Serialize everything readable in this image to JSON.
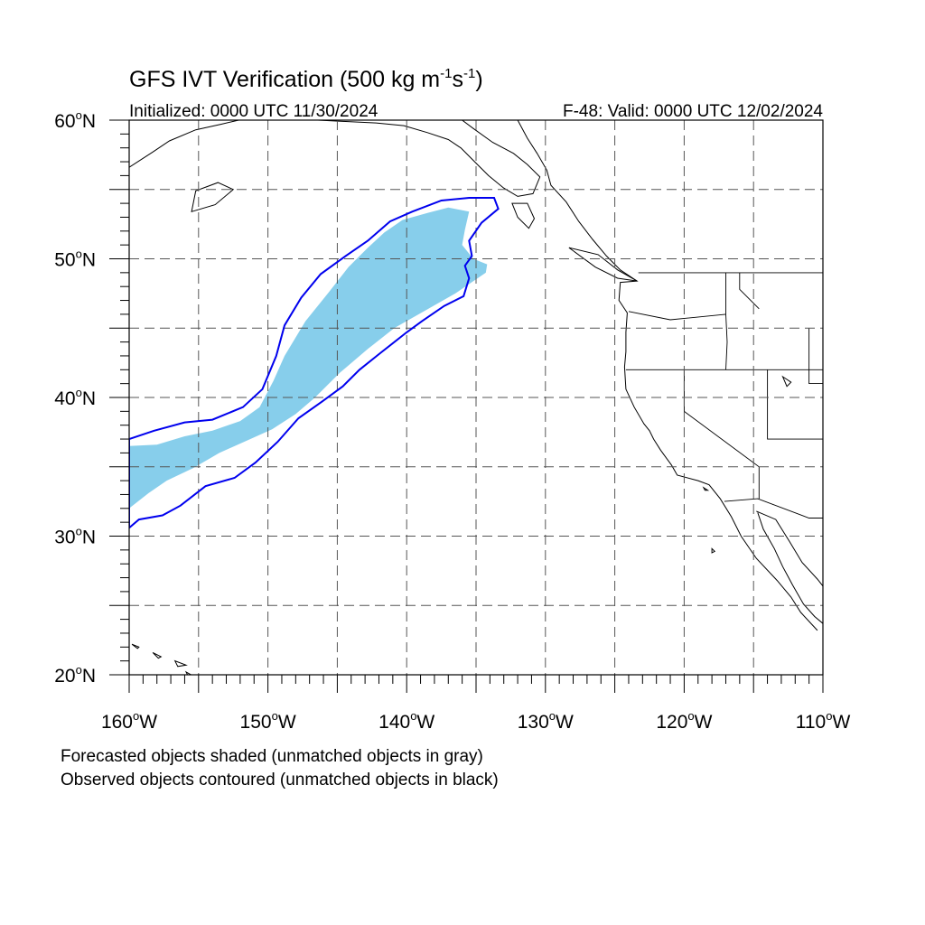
{
  "title": {
    "prefix": "GFS IVT Verification (500 kg m",
    "exp1": "-1",
    "mid": "s",
    "exp2": "-1",
    "suffix": ")"
  },
  "subtitle_left": "Initialized: 0000 UTC 11/30/2024",
  "subtitle_right": "F-48: Valid: 0000 UTC 12/02/2024",
  "degree_symbol": "o",
  "lat_labels": [
    {
      "value": 60,
      "num": "60",
      "hem": "N"
    },
    {
      "value": 50,
      "num": "50",
      "hem": "N"
    },
    {
      "value": 40,
      "num": "40",
      "hem": "N"
    },
    {
      "value": 30,
      "num": "30",
      "hem": "N"
    },
    {
      "value": 20,
      "num": "20",
      "hem": "N"
    }
  ],
  "lon_labels": [
    {
      "value": -160,
      "num": "160",
      "hem": "W"
    },
    {
      "value": -150,
      "num": "150",
      "hem": "W"
    },
    {
      "value": -140,
      "num": "140",
      "hem": "W"
    },
    {
      "value": -130,
      "num": "130",
      "hem": "W"
    },
    {
      "value": -120,
      "num": "120",
      "hem": "W"
    },
    {
      "value": -110,
      "num": "110",
      "hem": "W"
    }
  ],
  "map": {
    "lon_range": [
      -160,
      -110
    ],
    "lat_range": [
      20,
      60
    ],
    "grid_interval_deg": 5,
    "forecast_fill_color": "#87ceeb",
    "observed_contour_color": "#0000ee",
    "coastline_color": "#000000"
  },
  "forecast_object": [
    [
      -160,
      36.5
    ],
    [
      -158,
      36.6
    ],
    [
      -156,
      37.2
    ],
    [
      -154,
      37.6
    ],
    [
      -152,
      38.3
    ],
    [
      -150.6,
      39.3
    ],
    [
      -149.6,
      41.2
    ],
    [
      -148.8,
      43.0
    ],
    [
      -147.3,
      45.5
    ],
    [
      -145.6,
      47.6
    ],
    [
      -144.2,
      49.4
    ],
    [
      -142.8,
      50.8
    ],
    [
      -141.6,
      51.9
    ],
    [
      -140.3,
      52.8
    ],
    [
      -138.5,
      53.3
    ],
    [
      -137,
      53.7
    ],
    [
      -135.5,
      53.4
    ],
    [
      -135.8,
      52.1
    ],
    [
      -136,
      51.0
    ],
    [
      -135.2,
      50.0
    ],
    [
      -134.2,
      49.6
    ],
    [
      -134.3,
      49.0
    ],
    [
      -136.5,
      47.5
    ],
    [
      -138.6,
      46.3
    ],
    [
      -140.9,
      45.0
    ],
    [
      -142.8,
      43.5
    ],
    [
      -144.8,
      41.8
    ],
    [
      -146.6,
      40.0
    ],
    [
      -148.0,
      38.8
    ],
    [
      -149.7,
      37.7
    ],
    [
      -151.5,
      36.9
    ],
    [
      -153.5,
      36.0
    ],
    [
      -155.4,
      34.9
    ],
    [
      -157.3,
      34.0
    ],
    [
      -158.6,
      33.1
    ],
    [
      -160,
      32.0
    ]
  ],
  "observed_object": [
    [
      -160,
      37.0
    ],
    [
      -158.2,
      37.6
    ],
    [
      -156,
      38.2
    ],
    [
      -154.0,
      38.4
    ],
    [
      -151.8,
      39.3
    ],
    [
      -150.4,
      40.6
    ],
    [
      -149.4,
      43.0
    ],
    [
      -148.8,
      45.2
    ],
    [
      -147.6,
      47.2
    ],
    [
      -146.2,
      48.9
    ],
    [
      -144.4,
      50.2
    ],
    [
      -142.8,
      51.3
    ],
    [
      -141.2,
      52.7
    ],
    [
      -139.6,
      53.4
    ],
    [
      -137.5,
      54.2
    ],
    [
      -135.5,
      54.4
    ],
    [
      -133.7,
      54.4
    ],
    [
      -133.4,
      53.6
    ],
    [
      -134.6,
      52.6
    ],
    [
      -135.5,
      51.3
    ],
    [
      -135.3,
      50.2
    ],
    [
      -135.8,
      49.5
    ],
    [
      -135.5,
      48.6
    ],
    [
      -135.9,
      47.3
    ],
    [
      -137.3,
      46.6
    ],
    [
      -138.9,
      45.5
    ],
    [
      -140.0,
      44.7
    ],
    [
      -141.9,
      43.2
    ],
    [
      -143.4,
      42.0
    ],
    [
      -144.6,
      40.8
    ],
    [
      -146.1,
      39.7
    ],
    [
      -147.8,
      38.5
    ],
    [
      -149.3,
      36.8
    ],
    [
      -150.9,
      35.3
    ],
    [
      -152.4,
      34.2
    ],
    [
      -154.5,
      33.6
    ],
    [
      -156.3,
      32.2
    ],
    [
      -157.6,
      31.5
    ],
    [
      -159.3,
      31.2
    ],
    [
      -160,
      30.6
    ]
  ],
  "north_america_coast": [
    [
      -132.0,
      60.0
    ],
    [
      -131.3,
      58.7
    ],
    [
      -130.6,
      57.6
    ],
    [
      -129.9,
      56.4
    ],
    [
      -129.6,
      55.3
    ],
    [
      -128.5,
      54.1
    ],
    [
      -127.6,
      52.7
    ],
    [
      -126.6,
      51.4
    ],
    [
      -125.6,
      50.2
    ],
    [
      -124.6,
      49.2
    ],
    [
      -123.4,
      48.4
    ],
    [
      -124.6,
      48.3
    ],
    [
      -124.7,
      47.0
    ],
    [
      -124.1,
      46.1
    ],
    [
      -124.2,
      44.7
    ],
    [
      -124.2,
      43.3
    ],
    [
      -124.3,
      42.2
    ],
    [
      -124.2,
      40.6
    ],
    [
      -123.6,
      39.3
    ],
    [
      -122.9,
      38.1
    ],
    [
      -122.5,
      37.6
    ],
    [
      -122.2,
      37.0
    ],
    [
      -121.7,
      36.2
    ],
    [
      -120.9,
      35.1
    ],
    [
      -120.5,
      34.4
    ],
    [
      -119.0,
      34.0
    ],
    [
      -118.2,
      33.7
    ],
    [
      -117.4,
      32.7
    ],
    [
      -116.6,
      31.4
    ],
    [
      -115.9,
      30.0
    ],
    [
      -114.8,
      28.4
    ],
    [
      -113.3,
      26.8
    ],
    [
      -112.3,
      25.6
    ],
    [
      -111.6,
      24.5
    ],
    [
      -110.4,
      23.2
    ]
  ],
  "gulf_of_california_coast": [
    [
      -114.7,
      31.7
    ],
    [
      -114.3,
      30.5
    ],
    [
      -113.5,
      29.1
    ],
    [
      -112.9,
      27.8
    ],
    [
      -112.2,
      26.5
    ],
    [
      -111.4,
      25.1
    ],
    [
      -110.6,
      24.2
    ],
    [
      -110.0,
      23.7
    ]
  ],
  "gulf_east_coast": [
    [
      -114.8,
      31.8
    ],
    [
      -113.4,
      31.2
    ],
    [
      -112.4,
      29.6
    ],
    [
      -111.5,
      28.1
    ],
    [
      -110.4,
      26.9
    ],
    [
      -110.0,
      26.4
    ]
  ],
  "alaska_coast": [
    [
      -160.0,
      56.6
    ],
    [
      -158.3,
      57.7
    ],
    [
      -157.1,
      58.5
    ],
    [
      -155.2,
      59.3
    ],
    [
      -153.4,
      59.7
    ],
    [
      -152.1,
      60.0
    ]
  ],
  "alaska_coast_east": [
    [
      -146.4,
      60.0
    ],
    [
      -144.4,
      59.9
    ],
    [
      -142.2,
      59.8
    ],
    [
      -140.2,
      59.6
    ],
    [
      -138.5,
      59.1
    ],
    [
      -137.0,
      58.6
    ],
    [
      -136.1,
      58.0
    ],
    [
      -135.0,
      56.9
    ],
    [
      -134.1,
      56.0
    ],
    [
      -133.0,
      55.1
    ],
    [
      -132.0,
      54.5
    ],
    [
      -130.9,
      54.7
    ],
    [
      -130.4,
      55.9
    ],
    [
      -131.3,
      56.8
    ],
    [
      -132.3,
      57.6
    ],
    [
      -133.8,
      58.4
    ],
    [
      -135.2,
      59.4
    ],
    [
      -136.0,
      60.0
    ]
  ],
  "islands": [
    [
      [
        -155.5,
        53.4
      ],
      [
        -153.8,
        53.9
      ],
      [
        -152.5,
        55.0
      ],
      [
        -153.6,
        55.5
      ],
      [
        -155.2,
        54.9
      ],
      [
        -155.5,
        53.4
      ]
    ],
    [
      [
        -132.0,
        53.0
      ],
      [
        -131.2,
        52.2
      ],
      [
        -130.8,
        52.9
      ],
      [
        -131.3,
        54.0
      ],
      [
        -132.4,
        54.0
      ],
      [
        -132.0,
        53.0
      ]
    ],
    [
      [
        -128.3,
        50.8
      ],
      [
        -126.2,
        50.3
      ],
      [
        -124.8,
        49.2
      ],
      [
        -123.4,
        48.4
      ],
      [
        -124.8,
        48.6
      ],
      [
        -126.4,
        49.4
      ],
      [
        -128.3,
        50.8
      ]
    ],
    [
      [
        -159.8,
        22.2
      ],
      [
        -159.3,
        22.0
      ],
      [
        -159.4,
        21.9
      ],
      [
        -159.8,
        22.2
      ]
    ],
    [
      [
        -158.3,
        21.6
      ],
      [
        -157.7,
        21.3
      ],
      [
        -157.9,
        21.2
      ],
      [
        -158.3,
        21.6
      ]
    ],
    [
      [
        -156.7,
        21.0
      ],
      [
        -155.9,
        20.7
      ],
      [
        -156.5,
        20.6
      ],
      [
        -156.7,
        21.0
      ]
    ],
    [
      [
        -155.9,
        20.2
      ],
      [
        -155.0,
        19.7
      ],
      [
        -155.4,
        19.2
      ],
      [
        -155.9,
        20.2
      ]
    ],
    [
      [
        -118.6,
        33.5
      ],
      [
        -118.3,
        33.3
      ],
      [
        -118.5,
        33.3
      ],
      [
        -118.6,
        33.5
      ]
    ],
    [
      [
        -118.0,
        29.1
      ],
      [
        -117.8,
        28.9
      ],
      [
        -118.0,
        28.8
      ],
      [
        -118.0,
        29.1
      ]
    ]
  ],
  "borders": [
    [
      [
        -123.3,
        49.0
      ],
      [
        -110.0,
        49.0
      ]
    ],
    [
      [
        -124.2,
        42.0
      ],
      [
        -110.0,
        42.0
      ]
    ],
    [
      [
        -120.0,
        42.0
      ],
      [
        -120.0,
        39.0
      ],
      [
        -114.6,
        35.0
      ],
      [
        -114.6,
        32.7
      ]
    ],
    [
      [
        -117.1,
        32.5
      ],
      [
        -114.7,
        32.7
      ],
      [
        -111.0,
        31.3
      ],
      [
        -110.0,
        31.3
      ]
    ],
    [
      [
        -124.0,
        46.2
      ],
      [
        -121.0,
        45.6
      ],
      [
        -117.0,
        46.0
      ]
    ],
    [
      [
        -117.0,
        49.0
      ],
      [
        -117.0,
        46.0
      ],
      [
        -116.9,
        44.0
      ],
      [
        -117.0,
        42.0
      ]
    ],
    [
      [
        -116.0,
        49.0
      ],
      [
        -116.0,
        47.8
      ],
      [
        -114.6,
        46.4
      ]
    ],
    [
      [
        -114.0,
        42.0
      ],
      [
        -114.0,
        37.0
      ],
      [
        -110.0,
        37.0
      ]
    ],
    [
      [
        -111.0,
        45.0
      ],
      [
        -111.0,
        41.0
      ],
      [
        -110.0,
        41.0
      ]
    ]
  ],
  "lakes": [
    [
      [
        -112.9,
        41.5
      ],
      [
        -112.3,
        41.1
      ],
      [
        -112.6,
        40.8
      ],
      [
        -112.9,
        41.5
      ]
    ]
  ],
  "footer": [
    "Forecasted objects shaded (unmatched objects in gray)",
    "Observed objects contoured (unmatched objects in black)"
  ]
}
